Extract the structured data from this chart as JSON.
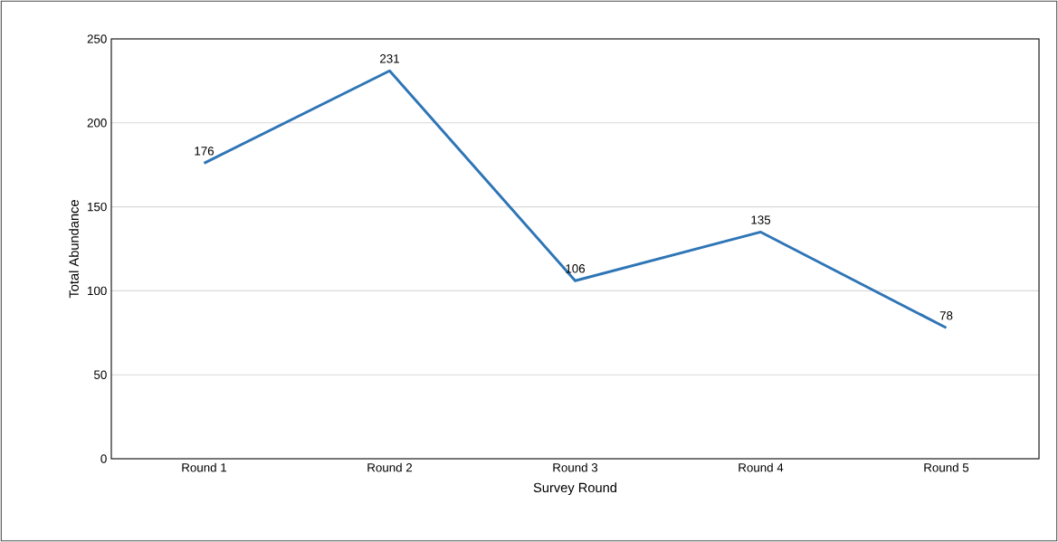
{
  "chart_data": {
    "type": "line",
    "xlabel": "Survey Round",
    "ylabel": "Total Abundance",
    "categories": [
      "Round 1",
      "Round 2",
      "Round 3",
      "Round 4",
      "Round 5"
    ],
    "values": [
      176,
      231,
      106,
      135,
      78
    ],
    "color": "#2e75b6",
    "ylim": [
      0,
      250
    ],
    "yticks": [
      0,
      50,
      100,
      150,
      200,
      250
    ],
    "grid": "y",
    "data_labels": true,
    "marker": "none",
    "line_style": "solid"
  }
}
